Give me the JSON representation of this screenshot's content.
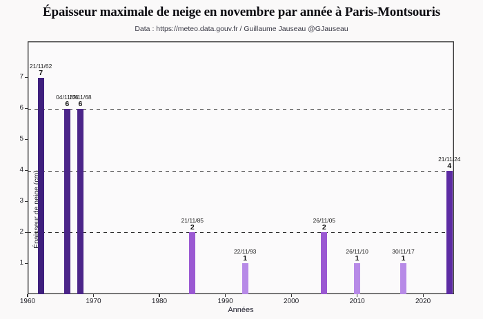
{
  "header": {
    "title": "Épaisseur maximale de neige en novembre par année à Paris-Montsouris",
    "subtitle": "Data : https://meteo.data.gouv.fr / Guillaume Jauseau @GJauseau"
  },
  "chart_data": {
    "type": "bar",
    "title": "Épaisseur maximale de neige en novembre par année à Paris-Montsouris",
    "subtitle": "Data : https://meteo.data.gouv.fr / Guillaume Jauseau @GJauseau",
    "xlabel": "Années",
    "ylabel": "Épaisseur de neige (cm)",
    "xlim": [
      1960,
      2024.7
    ],
    "ylim": [
      0,
      8.18
    ],
    "x_ticks": [
      1960,
      1970,
      1980,
      1990,
      2000,
      2010,
      2020
    ],
    "y_ticks": [
      1,
      2,
      3,
      4,
      5,
      6,
      7
    ],
    "gridlines_y": [
      2,
      4,
      6
    ],
    "grid_style": "dashed",
    "legend": "none",
    "points": [
      {
        "year": 1962,
        "date": "21/11/62",
        "value": 7,
        "color": "#3e1f7d"
      },
      {
        "year": 1966,
        "date": "04/11/66",
        "value": 6,
        "color": "#4b2589"
      },
      {
        "year": 1968,
        "date": "17/11/68",
        "value": 6,
        "color": "#4b2589"
      },
      {
        "year": 1985,
        "date": "21/11/85",
        "value": 2,
        "color": "#9a58d2"
      },
      {
        "year": 1993,
        "date": "22/11/93",
        "value": 1,
        "color": "#b78ae7"
      },
      {
        "year": 2005,
        "date": "26/11/05",
        "value": 2,
        "color": "#9a58d2"
      },
      {
        "year": 2010,
        "date": "26/11/10",
        "value": 1,
        "color": "#b78ae7"
      },
      {
        "year": 2017,
        "date": "30/11/17",
        "value": 1,
        "color": "#b78ae7"
      },
      {
        "year": 2024,
        "date": "21/11/24",
        "value": 4,
        "color": "#5c2ba3"
      }
    ]
  }
}
